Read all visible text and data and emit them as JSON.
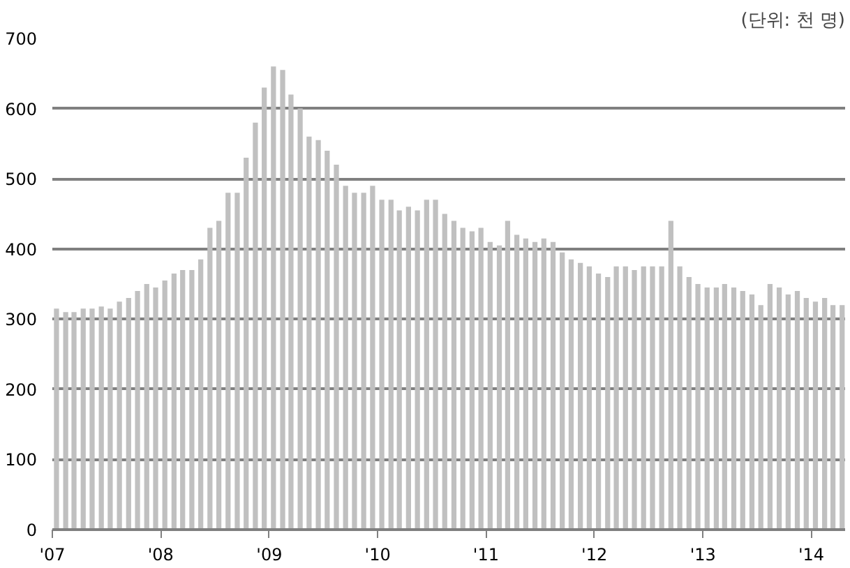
{
  "chart_data": {
    "type": "bar",
    "annotations": [
      "(단위: 천 명)"
    ],
    "x": [
      "2007-01-15",
      "2007-02-15",
      "2007-03-15",
      "2007-04-15",
      "2007-05-15",
      "2007-06-15",
      "2007-07-15",
      "2007-08-15",
      "2007-09-15",
      "2007-10-15",
      "2007-11-15",
      "2007-12-15",
      "2008-01-15",
      "2008-02-15",
      "2008-03-15",
      "2008-04-15",
      "2008-05-15",
      "2008-06-15",
      "2008-07-15",
      "2008-08-15",
      "2008-09-15",
      "2008-10-15",
      "2008-11-15",
      "2008-12-15",
      "2009-01-15",
      "2009-02-15",
      "2009-03-15",
      "2009-04-15",
      "2009-05-15",
      "2009-06-15",
      "2009-07-15",
      "2009-08-15",
      "2009-09-15",
      "2009-10-15",
      "2009-11-15",
      "2009-12-15",
      "2010-01-15",
      "2010-02-15",
      "2010-03-15",
      "2010-04-15",
      "2010-05-15",
      "2010-06-15",
      "2010-07-15",
      "2010-08-15",
      "2010-09-15",
      "2010-10-15",
      "2010-11-15",
      "2010-12-15",
      "2011-01-15",
      "2011-02-15",
      "2011-03-15",
      "2011-04-15",
      "2011-05-15",
      "2011-06-15",
      "2011-07-15",
      "2011-08-15",
      "2011-09-15",
      "2011-10-15",
      "2011-11-15",
      "2011-12-15",
      "2012-01-15",
      "2012-02-15",
      "2012-03-15",
      "2012-04-15",
      "2012-05-15",
      "2012-06-15",
      "2012-07-15",
      "2012-08-15",
      "2012-09-15",
      "2012-10-15",
      "2012-11-15",
      "2012-12-15",
      "2013-01-15",
      "2013-02-15",
      "2013-03-15",
      "2013-04-15",
      "2013-05-15",
      "2013-06-15",
      "2013-07-15",
      "2013-08-15",
      "2013-09-15",
      "2013-10-15",
      "2013-11-15",
      "2013-12-15",
      "2014-01-15",
      "2014-02-15",
      "2014-03-15",
      "2014-04-15"
    ],
    "values": [
      315,
      310,
      310,
      315,
      315,
      318,
      315,
      325,
      330,
      340,
      350,
      345,
      355,
      365,
      370,
      370,
      385,
      430,
      440,
      480,
      480,
      530,
      580,
      630,
      660,
      655,
      620,
      600,
      560,
      555,
      540,
      520,
      490,
      480,
      480,
      490,
      470,
      470,
      455,
      460,
      455,
      470,
      470,
      450,
      440,
      430,
      425,
      430,
      410,
      405,
      440,
      420,
      415,
      410,
      415,
      410,
      395,
      385,
      380,
      375,
      365,
      360,
      375,
      375,
      370,
      375,
      375,
      375,
      440,
      375,
      360,
      350,
      345,
      345,
      350,
      345,
      340,
      335,
      320,
      350,
      345,
      335,
      340,
      330,
      325,
      330,
      320,
      320
    ],
    "color": "#c0c0c0",
    "xlim": [
      "2007-01-01",
      "2014-04-25"
    ],
    "xticks": [
      {
        "value": "2007-01-01",
        "label": "'07"
      },
      {
        "value": "2008-01-01",
        "label": "'08"
      },
      {
        "value": "2009-01-01",
        "label": "'09"
      },
      {
        "value": "2010-01-01",
        "label": "'10"
      },
      {
        "value": "2011-01-01",
        "label": "'11"
      },
      {
        "value": "2012-01-01",
        "label": "'12"
      },
      {
        "value": "2013-01-01",
        "label": "'13"
      },
      {
        "value": "2014-01-01",
        "label": "'14"
      }
    ],
    "ylim": [
      0,
      700
    ],
    "yticks": [
      0,
      100,
      200,
      300,
      400,
      500,
      600,
      700
    ],
    "grid": "y"
  }
}
